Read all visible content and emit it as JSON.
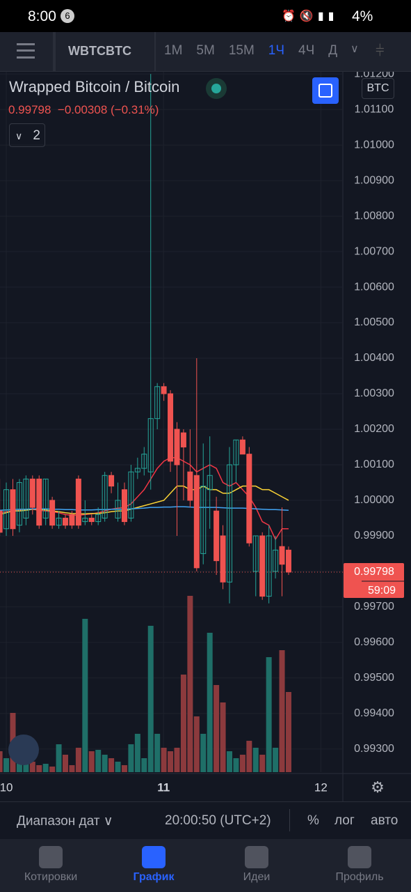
{
  "status_bar": {
    "time": "8:00",
    "notifications": "6",
    "battery": "4%"
  },
  "toolbar": {
    "symbol": "WBTCBTC",
    "intervals": [
      "1М",
      "5М",
      "15М",
      "1Ч",
      "4Ч",
      "Д"
    ],
    "active_interval": "1Ч"
  },
  "legend": {
    "title": "Wrapped Bitcoin / Bitcoin",
    "price": "0.99798",
    "change": "−0.00308 (−0.31%)",
    "indicators": "2",
    "currency": "BTC"
  },
  "chart_data": {
    "type": "candlestick",
    "up_color": "#26a69a",
    "down_color": "#ef5350",
    "open": [
      0.9997,
      0.9992,
      1.0003,
      0.9993,
      0.9995,
      1.0006,
      1.0006,
      0.9995,
      1.0,
      0.9993,
      0.9995,
      0.9996,
      1.0006,
      0.9994,
      0.9995,
      0.9994,
      0.9995,
      1.0007,
      0.9995,
      1.0003,
      0.9995,
      1.0008,
      1.0009,
      1.0008,
      1.0023,
      1.0032,
      1.003,
      1.002,
      1.0019,
      1.0008,
      1.0007,
      0.9985,
      1.0003,
      0.9997,
      0.999,
      0.9977,
      1.001,
      1.0017,
      1.0013,
      0.998,
      0.999,
      0.9973,
      0.998,
      0.9987,
      0.9986
    ],
    "high": [
      1.0006,
      1.0005,
      1.0006,
      1.0006,
      1.0007,
      1.0007,
      1.0007,
      1.0006,
      1.0001,
      0.9997,
      0.9996,
      0.9997,
      1.0007,
      1.0,
      0.9996,
      0.9998,
      1.0008,
      1.0008,
      1.0005,
      1.0005,
      1.001,
      1.0012,
      1.0015,
      1.012,
      1.0033,
      1.0033,
      1.0031,
      1.0022,
      1.002,
      1.002,
      1.004,
      1.0016,
      1.0018,
      1.0001,
      0.9993,
      1.0015,
      1.0017,
      1.0018,
      1.0015,
      0.999,
      0.9991,
      0.9993,
      0.999,
      0.9998,
      0.9987
    ],
    "low": [
      0.999,
      0.999,
      0.999,
      0.9991,
      0.9993,
      0.9996,
      0.9992,
      0.9993,
      0.9992,
      0.9992,
      0.9992,
      0.9992,
      0.9992,
      0.9993,
      0.9993,
      0.9993,
      0.9994,
      1.0002,
      0.9994,
      0.9993,
      0.9994,
      1.0006,
      1.0007,
      1.0003,
      1.002,
      1.0028,
      1.0008,
      0.999,
      1.0,
      0.9998,
      0.998,
      0.9982,
      0.9992,
      0.9979,
      0.9975,
      0.9971,
      1.0005,
      1.0013,
      0.9987,
      0.9973,
      0.9972,
      0.9971,
      0.9978,
      0.9973,
      0.9979
    ],
    "close": [
      0.9991,
      1.0003,
      0.9992,
      1.0005,
      1.0006,
      0.9998,
      0.9993,
      1.0006,
      0.9993,
      0.9995,
      0.9993,
      0.9993,
      0.9993,
      0.9995,
      0.9994,
      0.9996,
      1.0007,
      1.0004,
      1.0,
      0.9994,
      1.0008,
      1.0009,
      1.0013,
      1.0023,
      1.0032,
      1.003,
      1.0011,
      1.001,
      1.0015,
      1.0,
      0.9981,
      1.0004,
      1.0007,
      0.9983,
      0.9977,
      1.001,
      1.0017,
      1.0013,
      0.9988,
      0.999,
      0.9973,
      0.999,
      0.9986,
      0.9982,
      0.99798
    ],
    "volume": [
      30,
      20,
      85,
      15,
      25,
      15,
      10,
      12,
      8,
      40,
      25,
      10,
      35,
      220,
      30,
      32,
      25,
      20,
      15,
      10,
      40,
      55,
      20,
      210,
      55,
      35,
      30,
      35,
      140,
      253,
      80,
      55,
      200,
      125,
      100,
      30,
      20,
      25,
      45,
      35,
      25,
      165,
      35,
      175,
      115
    ],
    "series": [
      {
        "color": "#f23645",
        "values": [
          0.99965,
          0.99968,
          0.9997,
          0.99972,
          0.99975,
          0.99975,
          0.99972,
          0.9997,
          0.99968,
          0.99965,
          0.9996,
          0.99958,
          0.99958,
          0.9996,
          0.99962,
          0.99965,
          0.9997,
          0.99975,
          0.99978,
          0.9998,
          0.9999,
          1.0001,
          1.0003,
          1.0006,
          1.0009,
          1.0011,
          1.0012,
          1.0012,
          1.0011,
          1.001,
          1.0008,
          1.0009,
          1.001,
          1.0009,
          1.0005,
          1.0004,
          1.0005,
          1.0003,
          1.0001,
          0.9998,
          0.9994,
          0.9993,
          0.9989,
          0.9992,
          0.9992
        ]
      },
      {
        "color": "#fbd335",
        "values": [
          0.9996,
          0.99965,
          0.9997,
          0.9997,
          0.99972,
          0.99975,
          0.99975,
          0.99973,
          0.9997,
          0.99968,
          0.99965,
          0.99963,
          0.99962,
          0.99962,
          0.99963,
          0.99963,
          0.99965,
          0.99968,
          0.9997,
          0.9997,
          0.99975,
          0.9998,
          0.99985,
          0.9999,
          0.99995,
          1.0,
          1.0002,
          1.0004,
          1.0004,
          1.0003,
          1.0003,
          1.0004,
          1.0003,
          1.0003,
          1.0002,
          1.0002,
          1.0003,
          1.0004,
          1.0004,
          1.0004,
          1.0003,
          1.0003,
          1.0002,
          1.0001,
          1.0
        ]
      },
      {
        "color": "#42a5f5",
        "values": [
          0.99972,
          0.99973,
          0.99974,
          0.99975,
          0.99975,
          0.99976,
          0.99976,
          0.99976,
          0.99975,
          0.99975,
          0.99974,
          0.99974,
          0.99973,
          0.99973,
          0.99973,
          0.99974,
          0.99974,
          0.99975,
          0.99975,
          0.99975,
          0.99976,
          0.99977,
          0.99978,
          0.9998,
          0.9998,
          0.99981,
          0.99981,
          0.99982,
          0.99982,
          0.99981,
          0.9998,
          0.9998,
          0.9998,
          0.9998,
          0.99979,
          0.99978,
          0.99978,
          0.99978,
          0.99977,
          0.99976,
          0.99975,
          0.99974,
          0.99974,
          0.99973,
          0.99972
        ]
      }
    ],
    "last_price": {
      "value": 0.99798,
      "label": "0.99798"
    },
    "countdown": "59:09",
    "ylim": [
      0.99235,
      1.01212
    ],
    "yticks": [
      {
        "value": 1.012,
        "label": "1.01200"
      },
      {
        "value": 1.011,
        "label": "1.01100"
      },
      {
        "value": 1.01,
        "label": "1.01000"
      },
      {
        "value": 1.009,
        "label": "1.00900"
      },
      {
        "value": 1.008,
        "label": "1.00800"
      },
      {
        "value": 1.007,
        "label": "1.00700"
      },
      {
        "value": 1.006,
        "label": "1.00600"
      },
      {
        "value": 1.005,
        "label": "1.00500"
      },
      {
        "value": 1.004,
        "label": "1.00400"
      },
      {
        "value": 1.003,
        "label": "1.00300"
      },
      {
        "value": 1.002,
        "label": "1.00200"
      },
      {
        "value": 1.001,
        "label": "1.00100"
      },
      {
        "value": 1.0,
        "label": "1.00000"
      },
      {
        "value": 0.999,
        "label": "0.99900"
      },
      {
        "value": 0.998,
        "label": "0.99800"
      },
      {
        "value": 0.997,
        "label": "0.99700"
      },
      {
        "value": 0.996,
        "label": "0.99600"
      },
      {
        "value": 0.995,
        "label": "0.99500"
      },
      {
        "value": 0.994,
        "label": "0.99400"
      },
      {
        "value": 0.993,
        "label": "0.99300"
      }
    ],
    "xlim": [
      9.96,
      12.14
    ],
    "xticks": [
      10,
      11,
      12
    ],
    "grid": true
  },
  "bottom_bar": {
    "range": "Диапазон дат",
    "time": "20:00:50 (UTC+2)",
    "percent": "%",
    "log": "лог",
    "auto": "авто"
  },
  "nav": [
    "Котировки",
    "График",
    "Идеи",
    "Профиль"
  ],
  "active_nav": "График"
}
